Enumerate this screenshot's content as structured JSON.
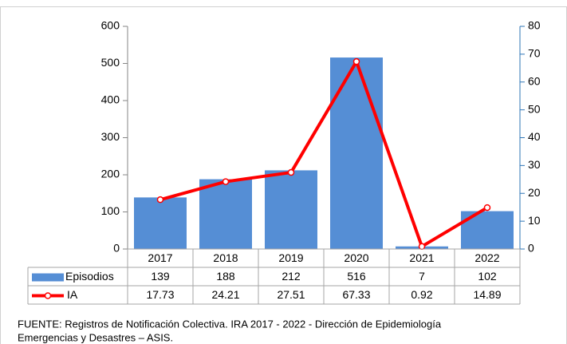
{
  "chart_data": {
    "type": "bar",
    "categories": [
      "2017",
      "2018",
      "2019",
      "2020",
      "2021",
      "2022"
    ],
    "series": [
      {
        "name": "Episodios",
        "color": "#558ed5",
        "type": "bar",
        "values": [
          139,
          188,
          212,
          516,
          7,
          102
        ]
      },
      {
        "name": "IA",
        "color": "#ff0000",
        "type": "line",
        "axis": "y2",
        "values": [
          17.73,
          24.21,
          27.51,
          67.33,
          0.92,
          14.89
        ]
      }
    ],
    "ylim": [
      0,
      600
    ],
    "yticks": [
      0,
      100,
      200,
      300,
      400,
      500,
      600
    ],
    "y2lim": [
      0,
      80
    ],
    "y2ticks": [
      0,
      10,
      20,
      30,
      40,
      50,
      60,
      70,
      80
    ],
    "legend": "data-table",
    "source": [
      "FUENTE:   Registros de Notificación Colectiva. IRA  2017 - 2022 - Dirección de Epidemiología",
      "Emergencias y Desastres – ASIS."
    ]
  }
}
